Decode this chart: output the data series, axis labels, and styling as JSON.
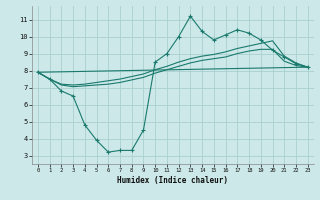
{
  "xlabel": "Humidex (Indice chaleur)",
  "bg_color": "#cce8e8",
  "grid_color": "#aad0d0",
  "line_color": "#1a7a6e",
  "xlim": [
    -0.5,
    23.5
  ],
  "ylim": [
    2.5,
    11.8
  ],
  "xticks": [
    0,
    1,
    2,
    3,
    4,
    5,
    6,
    7,
    8,
    9,
    10,
    11,
    12,
    13,
    14,
    15,
    16,
    17,
    18,
    19,
    20,
    21,
    22,
    23
  ],
  "yticks": [
    3,
    4,
    5,
    6,
    7,
    8,
    9,
    10,
    11
  ],
  "line1_x": [
    0,
    1,
    2,
    3,
    4,
    5,
    6,
    7,
    8,
    9,
    10,
    11,
    12,
    13,
    14,
    15,
    16,
    17,
    18,
    19,
    20,
    21,
    22,
    23
  ],
  "line1_y": [
    7.9,
    7.5,
    6.8,
    6.5,
    4.8,
    3.9,
    3.2,
    3.3,
    3.3,
    4.5,
    8.5,
    9.0,
    10.0,
    11.2,
    10.3,
    9.8,
    10.1,
    10.4,
    10.2,
    9.8,
    9.2,
    8.8,
    8.4,
    8.2
  ],
  "line2_x": [
    0,
    1,
    2,
    3,
    4,
    5,
    6,
    7,
    8,
    9,
    10,
    11,
    12,
    13,
    14,
    15,
    16,
    17,
    18,
    19,
    20,
    21,
    22,
    23
  ],
  "line2_y": [
    7.9,
    7.5,
    7.15,
    7.05,
    7.1,
    7.15,
    7.2,
    7.3,
    7.45,
    7.6,
    7.85,
    8.05,
    8.25,
    8.45,
    8.6,
    8.7,
    8.8,
    9.0,
    9.15,
    9.25,
    9.25,
    8.55,
    8.3,
    8.2
  ],
  "line3_x": [
    0,
    1,
    2,
    3,
    4,
    5,
    6,
    7,
    8,
    9,
    10,
    11,
    12,
    13,
    14,
    15,
    16,
    17,
    18,
    19,
    20,
    21,
    22,
    23
  ],
  "line3_y": [
    7.9,
    7.5,
    7.2,
    7.15,
    7.2,
    7.3,
    7.4,
    7.5,
    7.65,
    7.8,
    8.05,
    8.25,
    8.5,
    8.7,
    8.85,
    8.95,
    9.1,
    9.3,
    9.45,
    9.6,
    9.75,
    8.85,
    8.45,
    8.2
  ],
  "line4_x": [
    0,
    23
  ],
  "line4_y": [
    7.9,
    8.2
  ]
}
